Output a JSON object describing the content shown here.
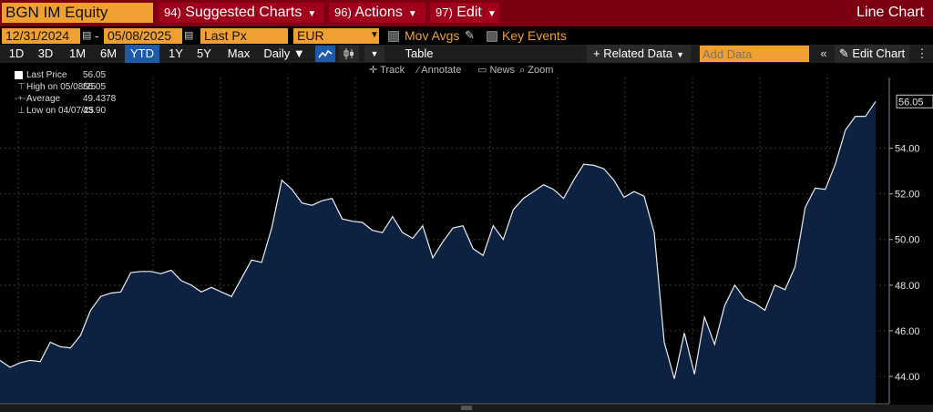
{
  "title_bar": {
    "ticker": "BGN IM Equity",
    "menus": [
      {
        "num": "94)",
        "label": "Suggested Charts"
      },
      {
        "num": "96)",
        "label": "Actions"
      },
      {
        "num": "97)",
        "label": "Edit"
      }
    ],
    "view_title": "Line Chart"
  },
  "controls": {
    "start_date": "12/31/2024",
    "end_date": "05/08/2025",
    "separator": "-",
    "field": "Last Px",
    "currency": "EUR",
    "mov_avgs": "Mov Avgs",
    "key_events": "Key Events"
  },
  "range_bar": {
    "ranges": [
      "1D",
      "3D",
      "1M",
      "6M",
      "YTD",
      "1Y",
      "5Y",
      "Max"
    ],
    "active": "YTD",
    "frequency": "Daily ▼",
    "table": "Table",
    "related_data": "+ Related Data",
    "add_data_placeholder": "Add Data",
    "edit_chart": "Edit Chart"
  },
  "tools": [
    "Track",
    "Annotate",
    "News",
    "Zoom"
  ],
  "legend": {
    "rows": [
      {
        "label": "Last Price",
        "value": "56.05"
      },
      {
        "label": "High on 05/08/25",
        "value": "56.05"
      },
      {
        "label": "Average",
        "value": "49.4378"
      },
      {
        "label": "Low on 04/07/25",
        "value": "43.90"
      }
    ]
  },
  "colors": {
    "title_bar": "#7a0012",
    "menu": "#a0001a",
    "field_orange": "#f0a030",
    "active_blue": "#1f5aa8",
    "area_fill": "#0d2240",
    "line": "#e8eef5"
  },
  "chart_data": {
    "type": "area",
    "series": [
      {
        "name": "Last Price",
        "values": [
          44.7,
          44.4,
          44.6,
          44.7,
          44.65,
          45.5,
          45.3,
          45.25,
          45.8,
          46.9,
          47.5,
          47.65,
          47.7,
          48.55,
          48.6,
          48.6,
          48.5,
          48.65,
          48.2,
          48.0,
          47.7,
          47.9,
          47.7,
          47.5,
          48.3,
          49.1,
          49.0,
          50.5,
          52.6,
          52.2,
          51.6,
          51.5,
          51.7,
          51.8,
          50.9,
          50.8,
          50.75,
          50.4,
          50.3,
          51.0,
          50.3,
          50.05,
          50.6,
          49.2,
          49.9,
          50.5,
          50.6,
          49.6,
          49.3,
          50.6,
          50.0,
          51.3,
          51.8,
          52.1,
          52.4,
          52.2,
          51.8,
          52.6,
          53.3,
          53.25,
          53.1,
          52.6,
          51.85,
          52.1,
          51.9,
          50.3,
          45.5,
          43.9,
          45.9,
          44.1,
          46.6,
          45.4,
          47.1,
          48.0,
          47.4,
          47.2,
          46.9,
          48.0,
          47.8,
          48.8,
          51.4,
          52.25,
          52.2,
          53.3,
          54.8,
          55.4,
          55.4,
          56.05
        ]
      }
    ],
    "y_ticks": [
      "44.00",
      "46.00",
      "48.00",
      "50.00",
      "52.00",
      "54.00"
    ],
    "ylim": [
      42.8,
      57.1
    ],
    "last_value_label": "56.05",
    "grid": true,
    "legend_position": "top-left"
  }
}
